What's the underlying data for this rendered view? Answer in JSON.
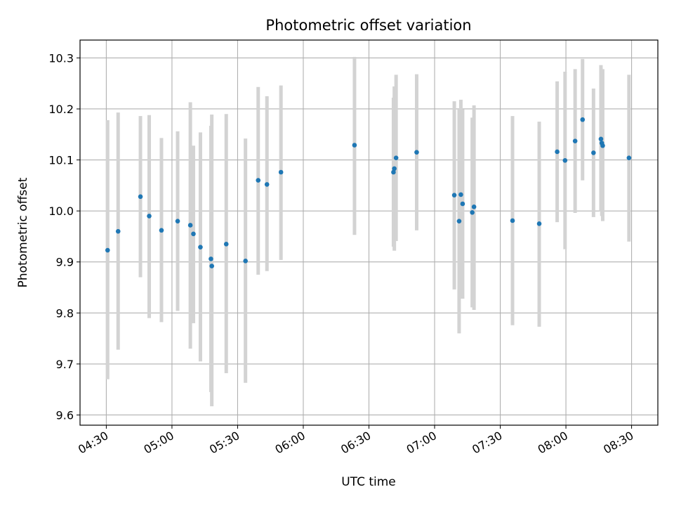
{
  "chart_data": {
    "type": "scatter",
    "title": "Photometric offset variation",
    "xlabel": "UTC time",
    "ylabel": "Photometric offset",
    "x_unit": "UTC time (HH:MM)",
    "xlim": [
      "04:18",
      "08:42"
    ],
    "ylim": [
      9.58,
      10.335
    ],
    "x_ticks": [
      "04:30",
      "05:00",
      "05:30",
      "06:00",
      "06:30",
      "07:00",
      "07:30",
      "08:00",
      "08:30"
    ],
    "y_ticks": [
      9.6,
      9.7,
      9.8,
      9.9,
      10.0,
      10.1,
      10.2,
      10.3
    ],
    "grid": true,
    "colors": {
      "points": "#1f77b4",
      "error_bars": "#d3d3d3",
      "grid": "#b0b0b0"
    },
    "points": [
      {
        "x": "04:30:36",
        "y": 9.923,
        "lo": 9.67,
        "hi": 10.178
      },
      {
        "x": "04:35:24",
        "y": 9.96,
        "lo": 9.728,
        "hi": 10.193
      },
      {
        "x": "04:45:36",
        "y": 10.028,
        "lo": 9.87,
        "hi": 10.186
      },
      {
        "x": "04:49:36",
        "y": 9.99,
        "lo": 9.79,
        "hi": 10.188
      },
      {
        "x": "04:55:12",
        "y": 9.962,
        "lo": 9.782,
        "hi": 10.143
      },
      {
        "x": "05:02:36",
        "y": 9.98,
        "lo": 9.804,
        "hi": 10.156
      },
      {
        "x": "05:08:24",
        "y": 9.972,
        "lo": 9.73,
        "hi": 10.213
      },
      {
        "x": "05:09:48",
        "y": 9.955,
        "lo": 9.78,
        "hi": 10.128
      },
      {
        "x": "05:13:00",
        "y": 9.929,
        "lo": 9.705,
        "hi": 10.154
      },
      {
        "x": "05:17:48",
        "y": 9.906,
        "lo": 9.645,
        "hi": 10.167
      },
      {
        "x": "05:18:12",
        "y": 9.892,
        "lo": 9.617,
        "hi": 10.189
      },
      {
        "x": "05:24:48",
        "y": 9.935,
        "lo": 9.682,
        "hi": 10.19
      },
      {
        "x": "05:33:36",
        "y": 9.902,
        "lo": 9.663,
        "hi": 10.142
      },
      {
        "x": "05:39:24",
        "y": 10.06,
        "lo": 9.875,
        "hi": 10.243
      },
      {
        "x": "05:43:24",
        "y": 10.052,
        "lo": 9.882,
        "hi": 10.225
      },
      {
        "x": "05:49:48",
        "y": 10.076,
        "lo": 9.904,
        "hi": 10.246
      },
      {
        "x": "06:23:24",
        "y": 10.129,
        "lo": 9.953,
        "hi": 10.302
      },
      {
        "x": "06:41:12",
        "y": 10.076,
        "lo": 9.93,
        "hi": 10.222
      },
      {
        "x": "06:41:36",
        "y": 10.083,
        "lo": 9.922,
        "hi": 10.244
      },
      {
        "x": "06:42:24",
        "y": 10.104,
        "lo": 9.941,
        "hi": 10.267
      },
      {
        "x": "06:51:48",
        "y": 10.115,
        "lo": 9.962,
        "hi": 10.268
      },
      {
        "x": "07:09:00",
        "y": 10.031,
        "lo": 9.846,
        "hi": 10.215
      },
      {
        "x": "07:11:12",
        "y": 9.98,
        "lo": 9.76,
        "hi": 10.2
      },
      {
        "x": "07:12:00",
        "y": 10.032,
        "lo": 9.828,
        "hi": 10.218
      },
      {
        "x": "07:12:48",
        "y": 10.014,
        "lo": 9.828,
        "hi": 10.199
      },
      {
        "x": "07:17:12",
        "y": 9.997,
        "lo": 9.811,
        "hi": 10.183
      },
      {
        "x": "07:18:00",
        "y": 10.008,
        "lo": 9.806,
        "hi": 10.207
      },
      {
        "x": "07:35:36",
        "y": 9.981,
        "lo": 9.776,
        "hi": 10.186
      },
      {
        "x": "07:47:48",
        "y": 9.975,
        "lo": 9.773,
        "hi": 10.175
      },
      {
        "x": "07:56:00",
        "y": 10.116,
        "lo": 9.978,
        "hi": 10.254
      },
      {
        "x": "07:59:36",
        "y": 10.099,
        "lo": 9.925,
        "hi": 10.273
      },
      {
        "x": "08:04:12",
        "y": 10.137,
        "lo": 9.996,
        "hi": 10.278
      },
      {
        "x": "08:07:36",
        "y": 10.179,
        "lo": 10.06,
        "hi": 10.298
      },
      {
        "x": "08:12:36",
        "y": 10.114,
        "lo": 9.988,
        "hi": 10.24
      },
      {
        "x": "08:16:00",
        "y": 10.141,
        "lo": 9.999,
        "hi": 10.286
      },
      {
        "x": "08:16:24",
        "y": 10.133,
        "lo": 9.99,
        "hi": 10.276
      },
      {
        "x": "08:16:48",
        "y": 10.128,
        "lo": 9.98,
        "hi": 10.278
      },
      {
        "x": "08:28:48",
        "y": 10.104,
        "lo": 9.94,
        "hi": 10.267
      }
    ]
  }
}
